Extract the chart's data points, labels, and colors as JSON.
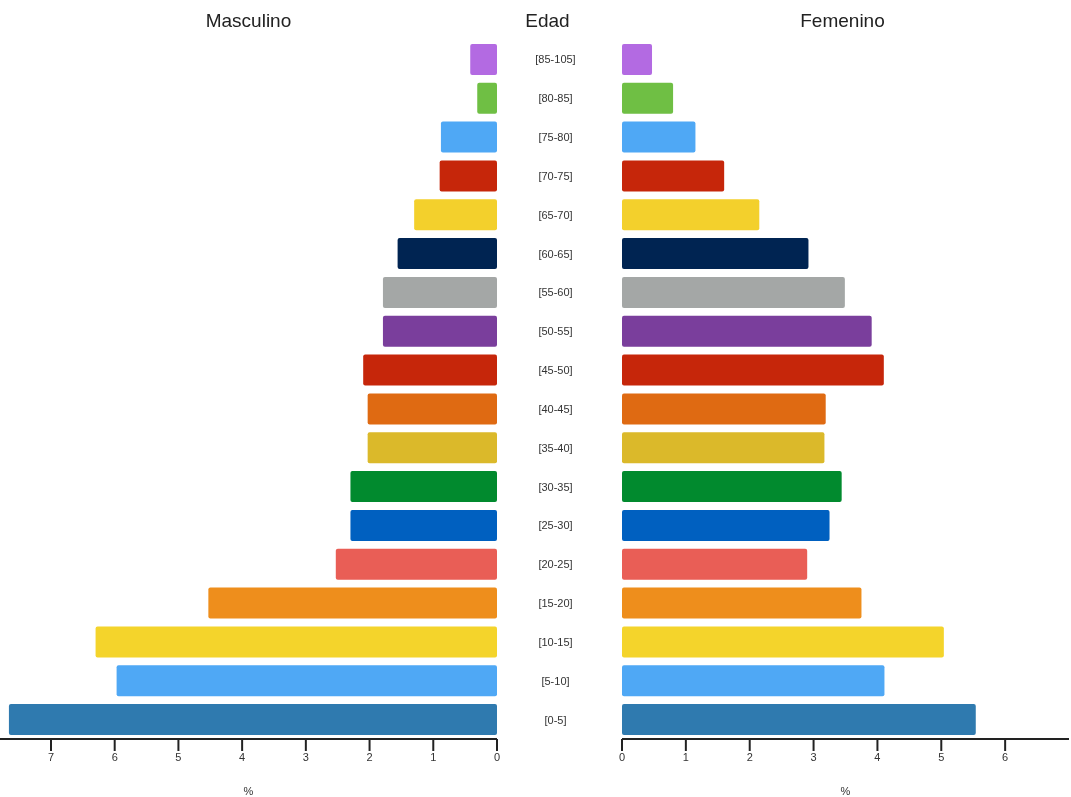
{
  "chart_data": [
    {
      "type": "bar",
      "orientation": "horizontal",
      "title": "Masculino",
      "ylabel": "Edad",
      "xlabel": "%",
      "categories": [
        "[85-105]",
        "[80-85]",
        "[75-80]",
        "[70-75]",
        "[65-70]",
        "[60-65]",
        "[55-60]",
        "[50-55]",
        "[45-50]",
        "[40-45]",
        "[35-40]",
        "[30-35]",
        "[25-30]",
        "[20-25]",
        "[15-20]",
        "[10-15]",
        "[5-10]",
        "[0-5]"
      ],
      "values": [
        0.42,
        0.31,
        0.88,
        0.9,
        1.3,
        1.56,
        1.79,
        1.79,
        2.1,
        2.03,
        2.03,
        2.3,
        2.3,
        2.53,
        4.53,
        6.3,
        5.97,
        7.66
      ],
      "colors": [
        "#b36ae2",
        "#6fbf44",
        "#4fa8f5",
        "#c6260a",
        "#f3d02c",
        "#002452",
        "#a4a7a6",
        "#7a3e9c",
        "#c6260a",
        "#df6a12",
        "#dbb92a",
        "#018a2e",
        "#0060c0",
        "#e95e56",
        "#ee8e1c",
        "#f4d42b",
        "#4fa8f5",
        "#2f7aaf"
      ],
      "xlim": [
        7.8,
        0
      ],
      "xticks": [
        0,
        1,
        2,
        3,
        4,
        5,
        6,
        7
      ],
      "grid": false,
      "legend": false
    },
    {
      "type": "bar",
      "orientation": "horizontal",
      "title": "Femenino",
      "xlabel": "%",
      "categories": [
        null,
        null,
        null,
        null,
        null,
        null,
        null,
        null,
        null,
        null,
        null,
        null,
        null,
        null,
        null,
        null,
        null,
        null
      ],
      "values": [
        0.47,
        0.8,
        1.15,
        1.6,
        2.15,
        2.92,
        3.49,
        3.91,
        4.1,
        3.19,
        3.17,
        3.44,
        3.25,
        2.9,
        3.75,
        5.04,
        4.11,
        5.54
      ],
      "colors": [
        "#b36ae2",
        "#6fbf44",
        "#4fa8f5",
        "#c6260a",
        "#f3d02c",
        "#002452",
        "#a4a7a6",
        "#7a3e9c",
        "#c6260a",
        "#df6a12",
        "#dbb92a",
        "#018a2e",
        "#0060c0",
        "#e95e56",
        "#ee8e1c",
        "#f4d42b",
        "#4fa8f5",
        "#2f7aaf"
      ],
      "xlim": [
        0,
        7
      ],
      "xticks": [
        0,
        1,
        2,
        3,
        4,
        5,
        6
      ],
      "tick_labels": "x",
      "grid": false,
      "legend": false
    }
  ]
}
